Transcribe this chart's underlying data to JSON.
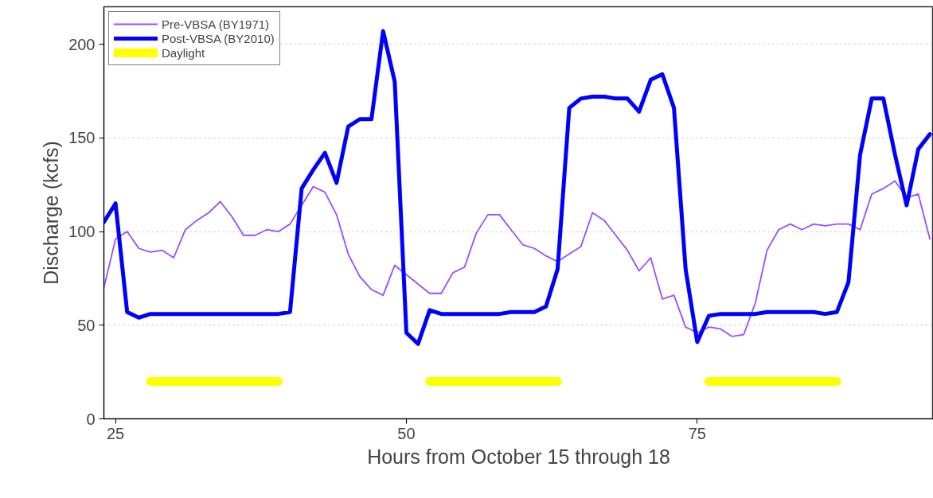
{
  "chart_data": {
    "type": "line",
    "xlabel": "Hours from October 15 through 18",
    "ylabel": "Discharge (kcfs)",
    "xlim": [
      24,
      95.3
    ],
    "ylim": [
      0,
      220
    ],
    "xticks": [
      25,
      50,
      75
    ],
    "yticks": [
      0,
      50,
      100,
      150,
      200
    ],
    "grid": "y",
    "legend": "top left",
    "marker": "none",
    "line_style": "solid",
    "series": [
      {
        "name": "Pre-VBSA (BY1971)",
        "color": "#9b4dff",
        "x": [
          24,
          25,
          26,
          27,
          28,
          29,
          30,
          31,
          32,
          33,
          34,
          35,
          36,
          37,
          38,
          39,
          40,
          41,
          42,
          43,
          44,
          45,
          46,
          47,
          48,
          49,
          50,
          51,
          52,
          53,
          54,
          55,
          56,
          57,
          58,
          59,
          60,
          61,
          62,
          63,
          64,
          65,
          66,
          67,
          68,
          69,
          70,
          71,
          72,
          73,
          74,
          75,
          76,
          77,
          78,
          79,
          80,
          81,
          82,
          83,
          84,
          85,
          86,
          87,
          88,
          89,
          90,
          91,
          92,
          93,
          94,
          95
        ],
        "values": [
          70,
          96,
          100,
          91,
          89,
          90,
          86,
          101,
          106,
          110,
          116,
          108,
          98,
          98,
          101,
          100,
          104,
          114,
          124,
          121,
          109,
          88,
          76,
          69,
          66,
          82,
          77,
          72,
          67,
          67,
          78,
          81,
          99,
          109,
          109,
          101,
          93,
          91,
          87,
          84,
          88,
          92,
          110,
          106,
          98,
          90,
          79,
          86,
          64,
          66,
          49,
          46,
          49,
          48,
          44,
          45,
          62,
          90,
          101,
          104,
          101,
          104,
          103,
          104,
          104,
          101,
          120,
          123,
          127,
          118,
          120,
          96
        ]
      },
      {
        "name": "Post-VBSA (BY2010)",
        "color": "#0000ff",
        "x": [
          24,
          25,
          26,
          27,
          28,
          29,
          30,
          31,
          32,
          33,
          34,
          35,
          36,
          37,
          38,
          39,
          40,
          41,
          42,
          43,
          44,
          45,
          46,
          47,
          48,
          49,
          50,
          51,
          52,
          53,
          54,
          55,
          56,
          57,
          58,
          59,
          60,
          61,
          62,
          63,
          64,
          65,
          66,
          67,
          68,
          69,
          70,
          71,
          72,
          73,
          74,
          75,
          76,
          77,
          78,
          79,
          80,
          81,
          82,
          83,
          84,
          85,
          86,
          87,
          88,
          89,
          90,
          91,
          92,
          93,
          94,
          95
        ],
        "values": [
          105,
          115,
          57,
          54,
          56,
          56,
          56,
          56,
          56,
          56,
          56,
          56,
          56,
          56,
          56,
          56,
          57,
          123,
          133,
          142,
          126,
          156,
          160,
          160,
          207,
          180,
          46,
          40,
          58,
          56,
          56,
          56,
          56,
          56,
          56,
          57,
          57,
          57,
          60,
          80,
          166,
          171,
          172,
          172,
          171,
          171,
          164,
          181,
          184,
          166,
          80,
          41,
          55,
          56,
          56,
          56,
          56,
          57,
          57,
          57,
          57,
          57,
          56,
          57,
          73,
          141,
          171,
          171,
          141,
          114,
          144,
          152
        ]
      },
      {
        "name": "Daylight",
        "color": "#ffff00",
        "x": [
          28,
          39,
          40,
          52,
          63,
          64,
          76,
          87
        ],
        "values": [
          20,
          20,
          null,
          20,
          20,
          null,
          20,
          20
        ]
      }
    ]
  }
}
